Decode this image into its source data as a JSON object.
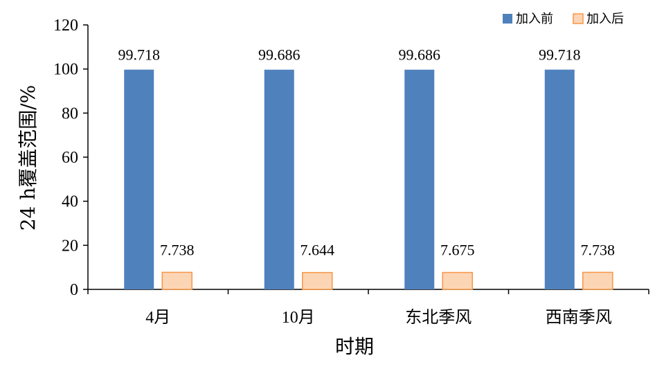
{
  "chart_data": {
    "type": "bar",
    "categories": [
      "4月",
      "10月",
      "东北季风",
      "西南季风"
    ],
    "series": [
      {
        "name": "加入前",
        "values": [
          99.718,
          99.686,
          99.686,
          99.718
        ],
        "labels": [
          "99.718",
          "99.686",
          "99.686",
          "99.718"
        ],
        "color": "#4f81bd"
      },
      {
        "name": "加入后",
        "values": [
          7.738,
          7.644,
          7.675,
          7.738
        ],
        "labels": [
          "7.738",
          "7.644",
          "7.675",
          "7.738"
        ],
        "color": "#fcd5b5",
        "stroke": "#f79646"
      }
    ],
    "xlabel": "时期",
    "ylabel": "24 h覆盖范围/%",
    "ylim": [
      0,
      120
    ],
    "yticks": [
      "0",
      "20",
      "40",
      "60",
      "80",
      "100",
      "120"
    ],
    "grid": false,
    "legend_position": "top-right"
  }
}
